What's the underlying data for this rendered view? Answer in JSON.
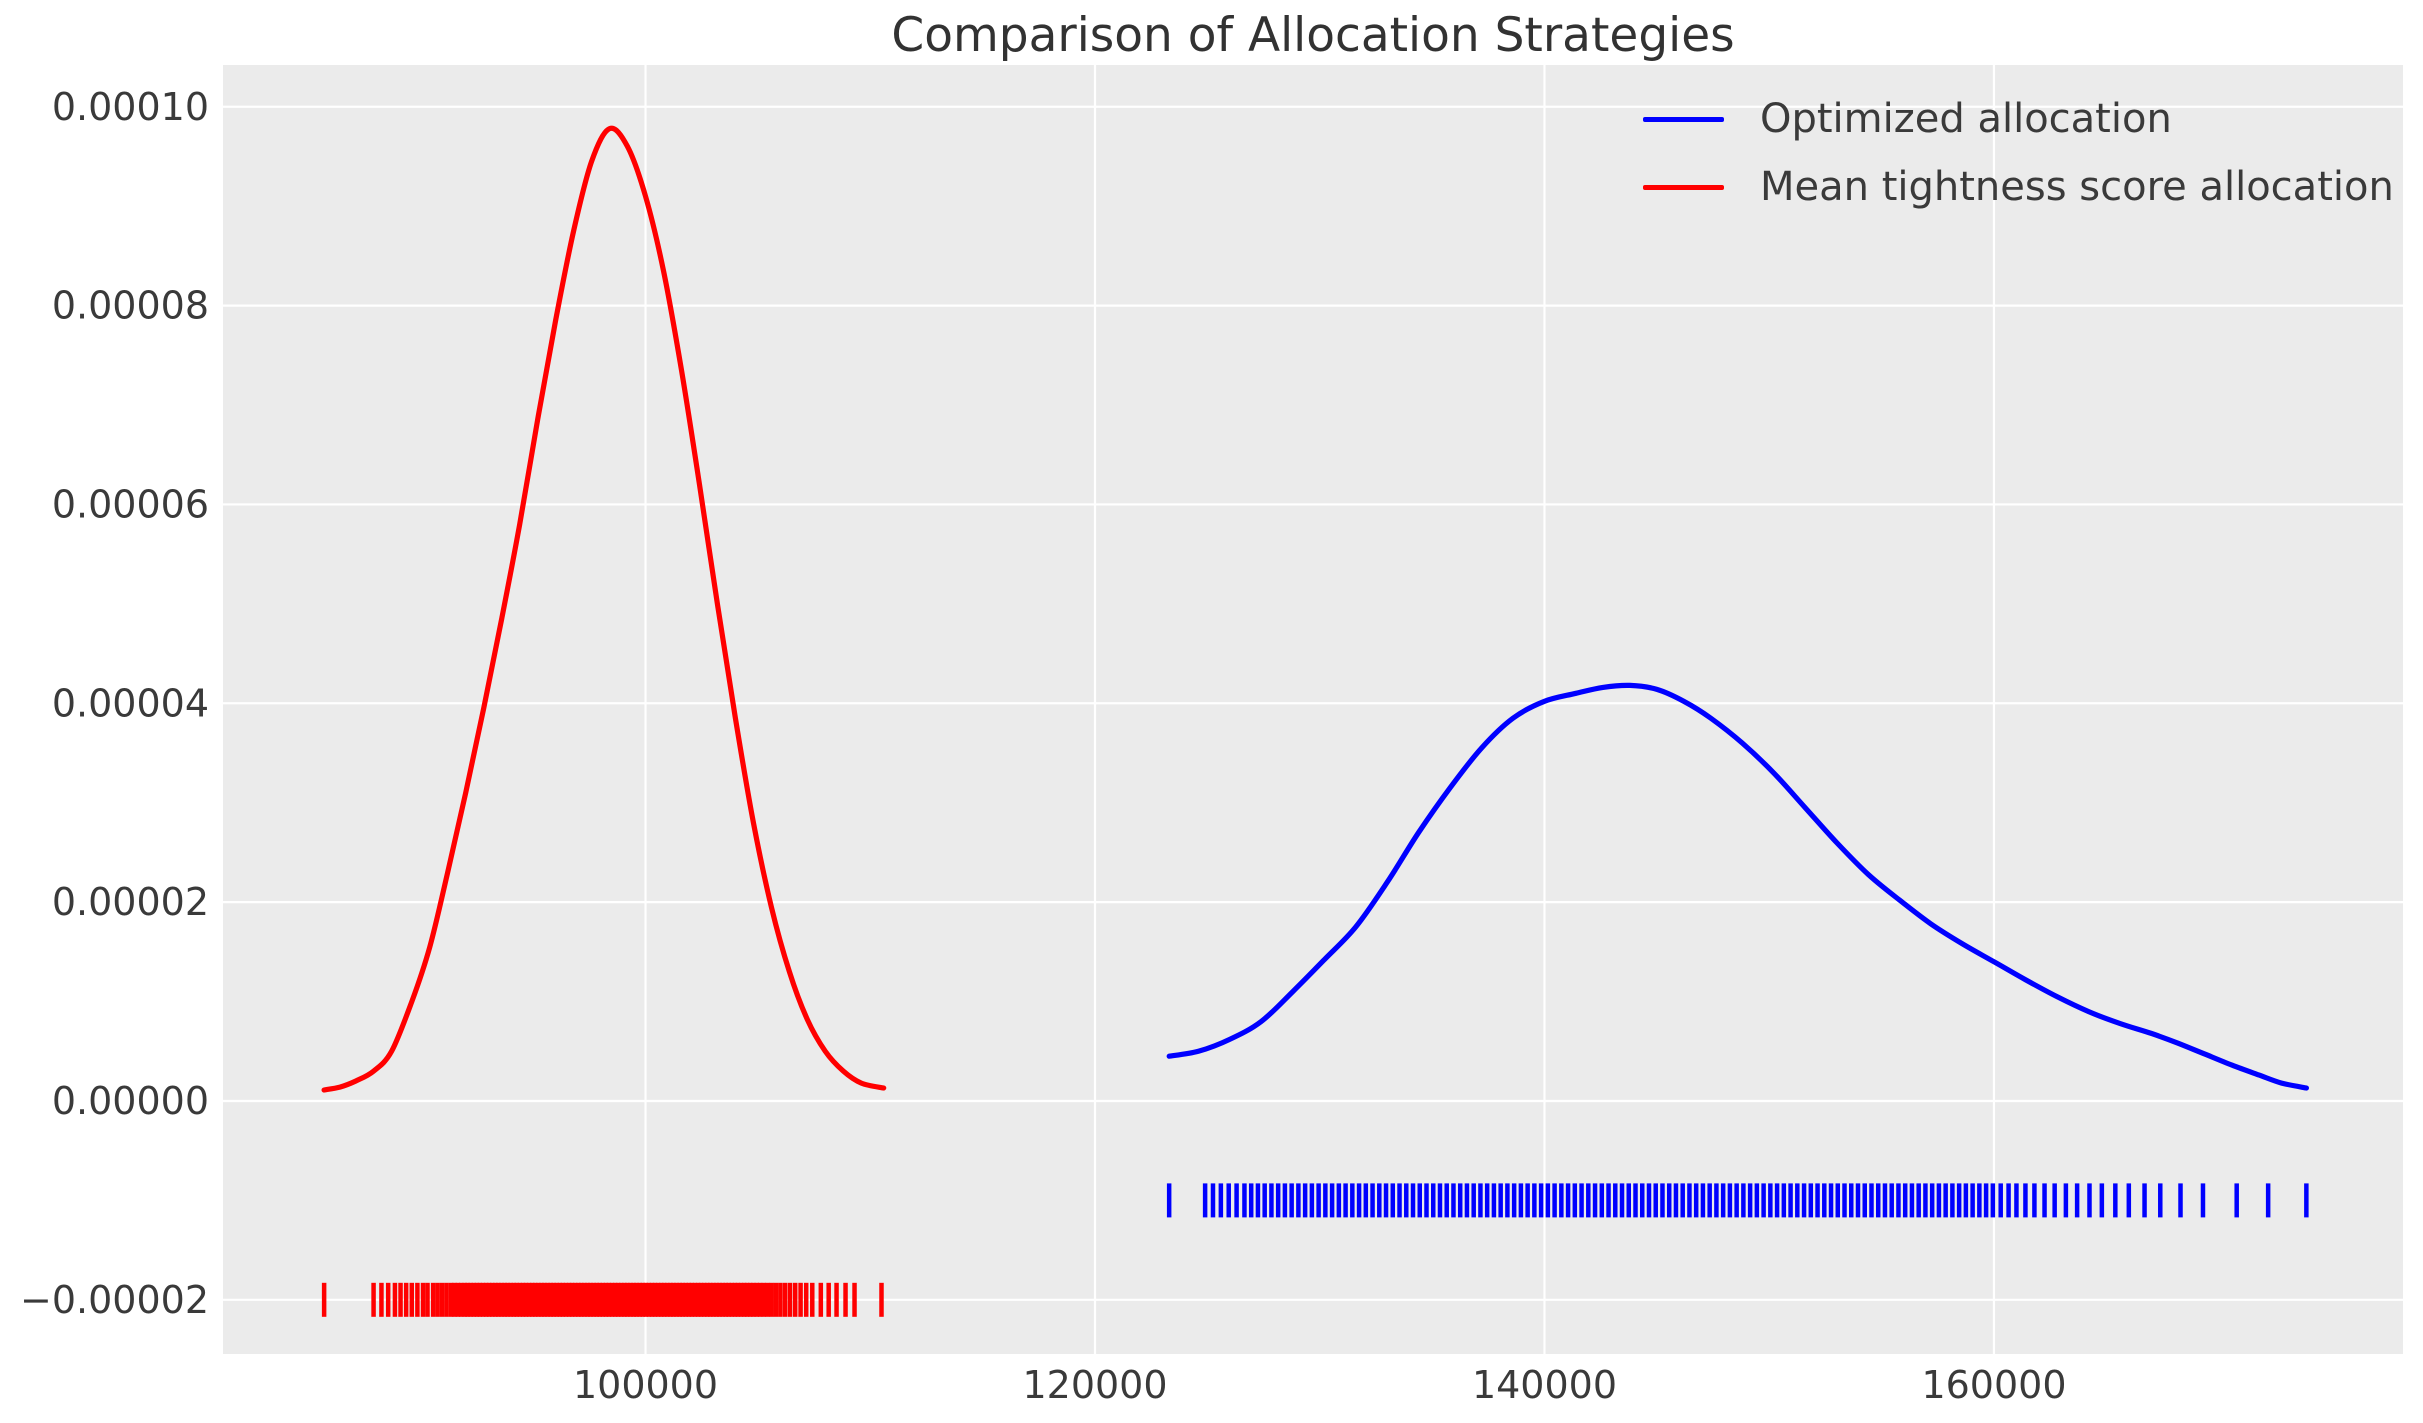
{
  "chart_data": {
    "type": "line",
    "subtype": "kde-with-rug",
    "title": "Comparison of Allocation Strategies",
    "xlabel": "",
    "ylabel": "",
    "grid": true,
    "plot_bg": "#ebebeb",
    "grid_color": "#ffffff",
    "figure_bg": "#ffffff",
    "legend_position": "upper right",
    "xlim": [
      81200,
      178200
    ],
    "ylim": [
      -2.545e-05,
      0.0001042
    ],
    "x_ticks": [
      {
        "value": 100000,
        "label": "100000"
      },
      {
        "value": 120000,
        "label": "120000"
      },
      {
        "value": 140000,
        "label": "140000"
      },
      {
        "value": 160000,
        "label": "160000"
      }
    ],
    "y_ticks": [
      {
        "value": 0.0001,
        "label": "0.00010"
      },
      {
        "value": 8e-05,
        "label": "0.00008"
      },
      {
        "value": 6e-05,
        "label": "0.00006"
      },
      {
        "value": 4e-05,
        "label": "0.00004"
      },
      {
        "value": 2e-05,
        "label": "0.00002"
      },
      {
        "value": 0.0,
        "label": "0.00000"
      },
      {
        "value": -2e-05,
        "label": "−0.00002"
      }
    ],
    "series": [
      {
        "name": "Optimized allocation",
        "color": "#0000ff",
        "peak": {
          "x": 143800,
          "density": 4.18e-05
        },
        "points": [
          [
            123300,
            4.5e-06
          ],
          [
            124600,
            5e-06
          ],
          [
            126000,
            6.2e-06
          ],
          [
            127400,
            8e-06
          ],
          [
            128800,
            1.1e-05
          ],
          [
            130200,
            1.42e-05
          ],
          [
            131600,
            1.75e-05
          ],
          [
            133000,
            2.2e-05
          ],
          [
            134400,
            2.7e-05
          ],
          [
            135800,
            3.15e-05
          ],
          [
            137200,
            3.55e-05
          ],
          [
            138600,
            3.85e-05
          ],
          [
            140000,
            4.02e-05
          ],
          [
            141400,
            4.1e-05
          ],
          [
            142600,
            4.16e-05
          ],
          [
            143800,
            4.18e-05
          ],
          [
            145000,
            4.14e-05
          ],
          [
            146200,
            4.02e-05
          ],
          [
            147400,
            3.85e-05
          ],
          [
            148800,
            3.6e-05
          ],
          [
            150200,
            3.3e-05
          ],
          [
            151600,
            2.95e-05
          ],
          [
            153000,
            2.6e-05
          ],
          [
            154400,
            2.28e-05
          ],
          [
            155800,
            2.02e-05
          ],
          [
            157200,
            1.78e-05
          ],
          [
            158600,
            1.58e-05
          ],
          [
            160000,
            1.4e-05
          ],
          [
            161400,
            1.22e-05
          ],
          [
            162800,
            1.05e-05
          ],
          [
            164200,
            9e-06
          ],
          [
            165600,
            7.8e-06
          ],
          [
            167000,
            6.8e-06
          ],
          [
            168200,
            5.8e-06
          ],
          [
            169400,
            4.7e-06
          ],
          [
            170600,
            3.6e-06
          ],
          [
            171800,
            2.6e-06
          ],
          [
            172800,
            1.8e-06
          ],
          [
            173900,
            1.3e-06
          ]
        ],
        "rug_y": -1e-05,
        "rug_values": [
          123300,
          124900,
          125250,
          125600,
          125950,
          126300,
          126650,
          126950,
          127250,
          127550,
          127850,
          128150,
          128450,
          128750,
          129050,
          129350,
          129650,
          129950,
          130250,
          130550,
          130850,
          131150,
          131450,
          131750,
          132050,
          132350,
          132650,
          132950,
          133250,
          133550,
          133850,
          134150,
          134450,
          134750,
          135050,
          135350,
          135650,
          135950,
          136250,
          136550,
          136850,
          137150,
          137450,
          137750,
          138050,
          138350,
          138650,
          138950,
          139250,
          139550,
          139850,
          140150,
          140450,
          140750,
          141050,
          141350,
          141650,
          141950,
          142250,
          142550,
          142850,
          143150,
          143450,
          143750,
          144050,
          144350,
          144650,
          144950,
          145250,
          145550,
          145850,
          146150,
          146450,
          146750,
          147050,
          147350,
          147650,
          147950,
          148250,
          148550,
          148850,
          149150,
          149450,
          149750,
          150050,
          150350,
          150650,
          150950,
          151250,
          151550,
          151850,
          152150,
          152450,
          152750,
          153050,
          153350,
          153650,
          153950,
          154250,
          154550,
          154850,
          155150,
          155450,
          155750,
          156050,
          156350,
          156650,
          156950,
          157250,
          157550,
          157850,
          158150,
          158450,
          158750,
          159050,
          159350,
          159650,
          159950,
          160300,
          160650,
          161000,
          161400,
          161800,
          162250,
          162700,
          163200,
          163700,
          164250,
          164800,
          165400,
          166000,
          166700,
          167400,
          168300,
          169300,
          170800,
          172200,
          173900
        ]
      },
      {
        "name": "Mean tightness score allocation",
        "color": "#ff0000",
        "peak": {
          "x": 98400,
          "density": 9.78e-05
        },
        "points": [
          [
            85700,
            1.1e-06
          ],
          [
            86400,
            1.4e-06
          ],
          [
            87100,
            2e-06
          ],
          [
            87900,
            3e-06
          ],
          [
            88700,
            5e-06
          ],
          [
            89600,
            1e-05
          ],
          [
            90400,
            1.55e-05
          ],
          [
            91200,
            2.3e-05
          ],
          [
            92000,
            3.1e-05
          ],
          [
            92800,
            3.95e-05
          ],
          [
            93600,
            4.85e-05
          ],
          [
            94400,
            5.8e-05
          ],
          [
            95200,
            6.85e-05
          ],
          [
            96000,
            7.85e-05
          ],
          [
            96800,
            8.75e-05
          ],
          [
            97600,
            9.45e-05
          ],
          [
            98400,
            9.78e-05
          ],
          [
            99200,
            9.6e-05
          ],
          [
            100000,
            9.1e-05
          ],
          [
            100800,
            8.35e-05
          ],
          [
            101600,
            7.35e-05
          ],
          [
            102400,
            6.2e-05
          ],
          [
            103200,
            5e-05
          ],
          [
            104000,
            3.85e-05
          ],
          [
            104800,
            2.8e-05
          ],
          [
            105600,
            1.95e-05
          ],
          [
            106400,
            1.3e-05
          ],
          [
            107200,
            8.2e-06
          ],
          [
            108000,
            5e-06
          ],
          [
            108800,
            3e-06
          ],
          [
            109600,
            1.8e-06
          ],
          [
            110600,
            1.3e-06
          ]
        ],
        "rug_y": -2e-05,
        "rug_values": [
          85700,
          87900,
          88250,
          88550,
          88850,
          89100,
          89350,
          89600,
          89850,
          90100,
          90300,
          90550,
          90750,
          90950,
          91150,
          91350,
          91500,
          91650,
          91800,
          91950,
          92080,
          92220,
          92360,
          92500,
          92630,
          92770,
          92910,
          93040,
          93180,
          93320,
          93450,
          93590,
          93730,
          93860,
          94000,
          94140,
          94270,
          94410,
          94550,
          94680,
          94820,
          94960,
          95090,
          95230,
          95370,
          95500,
          95640,
          95780,
          95910,
          96050,
          96190,
          96320,
          96460,
          96600,
          96730,
          96870,
          97010,
          97140,
          97280,
          97420,
          97550,
          97690,
          97830,
          97960,
          98100,
          98240,
          98370,
          98510,
          98650,
          98780,
          98920,
          99060,
          99190,
          99330,
          99470,
          99600,
          99740,
          99880,
          100010,
          100150,
          100290,
          100420,
          100560,
          100700,
          100830,
          100970,
          101110,
          101240,
          101380,
          101520,
          101650,
          101790,
          101930,
          102060,
          102200,
          102340,
          102470,
          102610,
          102750,
          102880,
          103020,
          103160,
          103290,
          103430,
          103570,
          103700,
          103840,
          103980,
          104110,
          104250,
          104390,
          104520,
          104660,
          104800,
          104950,
          105100,
          105260,
          105430,
          105610,
          105800,
          106000,
          106210,
          106430,
          106660,
          106900,
          107150,
          107420,
          107800,
          108150,
          108500,
          108900,
          109300,
          110500
        ]
      }
    ]
  },
  "text_colors": {
    "title": "#323232",
    "ticks": "#3a3a3a",
    "legend": "#3a3a3a"
  }
}
